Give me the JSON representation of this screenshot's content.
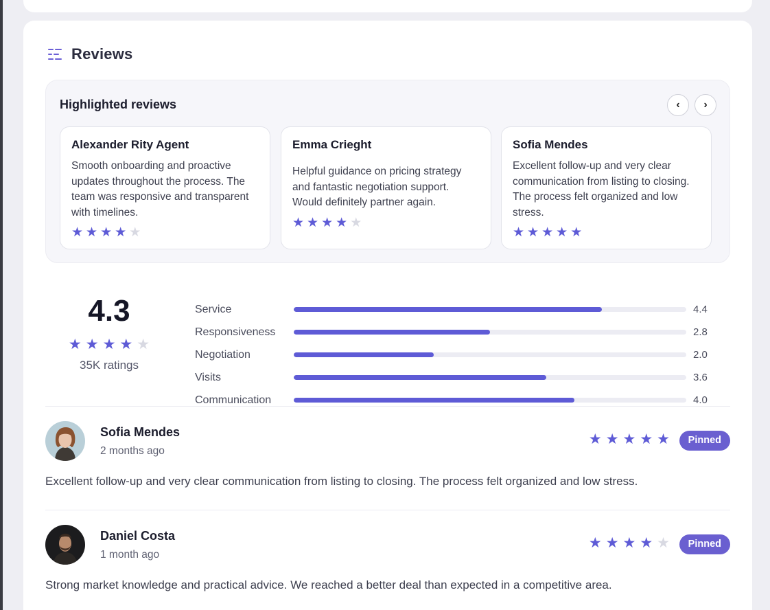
{
  "section": {
    "title": "Reviews",
    "icon": "list-indent-icon"
  },
  "highlighted": {
    "title": "Highlighted reviews",
    "prev_label": "‹",
    "next_label": "›",
    "cards": [
      {
        "name": "Alexander Rity Agent",
        "text": "Smooth onboarding and proactive updates throughout the process. The team was responsive and transparent with timelines.",
        "rating": 4
      },
      {
        "name": "Emma Crieght",
        "text": "Helpful guidance on pricing strategy and fantastic negotiation support. Would definitely partner again.",
        "rating": 4
      },
      {
        "name": "Sofia Mendes",
        "text": "Excellent follow-up and very clear communication from listing to closing. The process felt organized and low stress.",
        "rating": 5
      }
    ]
  },
  "summary": {
    "score": "4.3",
    "rating": 4,
    "count": "35K ratings",
    "categories": [
      {
        "label": "Service",
        "value": "4.4",
        "score": 4.4
      },
      {
        "label": "Responsiveness",
        "value": "2.8",
        "score": 2.8
      },
      {
        "label": "Negotiation",
        "value": "2.0",
        "score": 2.0
      },
      {
        "label": "Visits",
        "value": "3.6",
        "score": 3.6
      },
      {
        "label": "Communication",
        "value": "4.0",
        "score": 4.0
      }
    ],
    "max_score": 5.6
  },
  "reviews": [
    {
      "name": "Sofia Mendes",
      "time": "2 months ago",
      "rating": 5,
      "badge": "Pinned",
      "text": "Excellent follow-up and very clear communication from listing to closing. The process felt organized and low stress."
    },
    {
      "name": "Daniel Costa",
      "time": "1 month ago",
      "rating": 4,
      "badge": "Pinned",
      "text": "Strong market knowledge and practical advice. We reached a better deal than expected in a competitive area."
    }
  ],
  "colors": {
    "accent": "#5e5bd6",
    "badge": "#6a5fd0",
    "star_off": "#d8d9e2"
  }
}
